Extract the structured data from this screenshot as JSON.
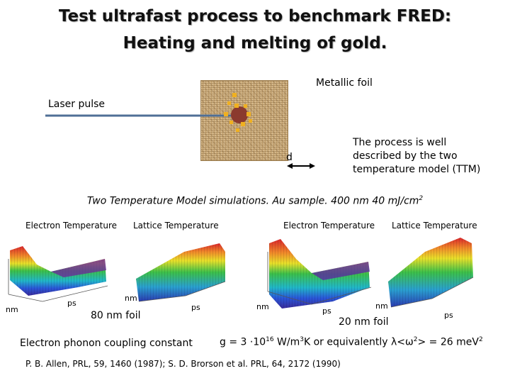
{
  "title": {
    "line1": "Test ultrafast process to benchmark FRED:",
    "line2": "Heating and melting of gold."
  },
  "diagram": {
    "metallic_foil": "Metallic foil",
    "laser_pulse": "Laser pulse",
    "thickness": "d",
    "ttm_line1": "The process is well",
    "ttm_line2": "described by the two",
    "ttm_line3": "temperature model (TTM)"
  },
  "subtitle": {
    "text": "Two Temperature Model simulations. Au sample. 400 nm 40 mJ/cm",
    "sup": "2"
  },
  "plots": {
    "left_electron_label": "Electron Temperature",
    "left_lattice_label": "Lattice Temperature",
    "right_electron_label": "Electron Temperature",
    "right_lattice_label": "Lattice Temperature",
    "foil_80": "80 nm foil",
    "foil_20": "20 nm foil",
    "axis_nm": "nm",
    "axis_ps": "ps"
  },
  "coupling": {
    "label": "Electron phonon coupling constant",
    "eq_pre": "g = 3 ·10",
    "eq_exp1": "16",
    "eq_mid": " W/m",
    "eq_exp2": "3",
    "eq_post": "K or equivalently λ<ω",
    "eq_exp3": "2",
    "eq_end": "> = 26 meV",
    "eq_exp4": "2"
  },
  "reference": "P. B. Allen, PRL, 59, 1460 (1987); S. D. Brorson et al. PRL, 64, 2172 (1990)",
  "colors": {
    "laser_line": "#4f6f96",
    "spot_red": "#8b3a2e",
    "spot_yellow": "#f0b020",
    "arrow": "#000000"
  }
}
